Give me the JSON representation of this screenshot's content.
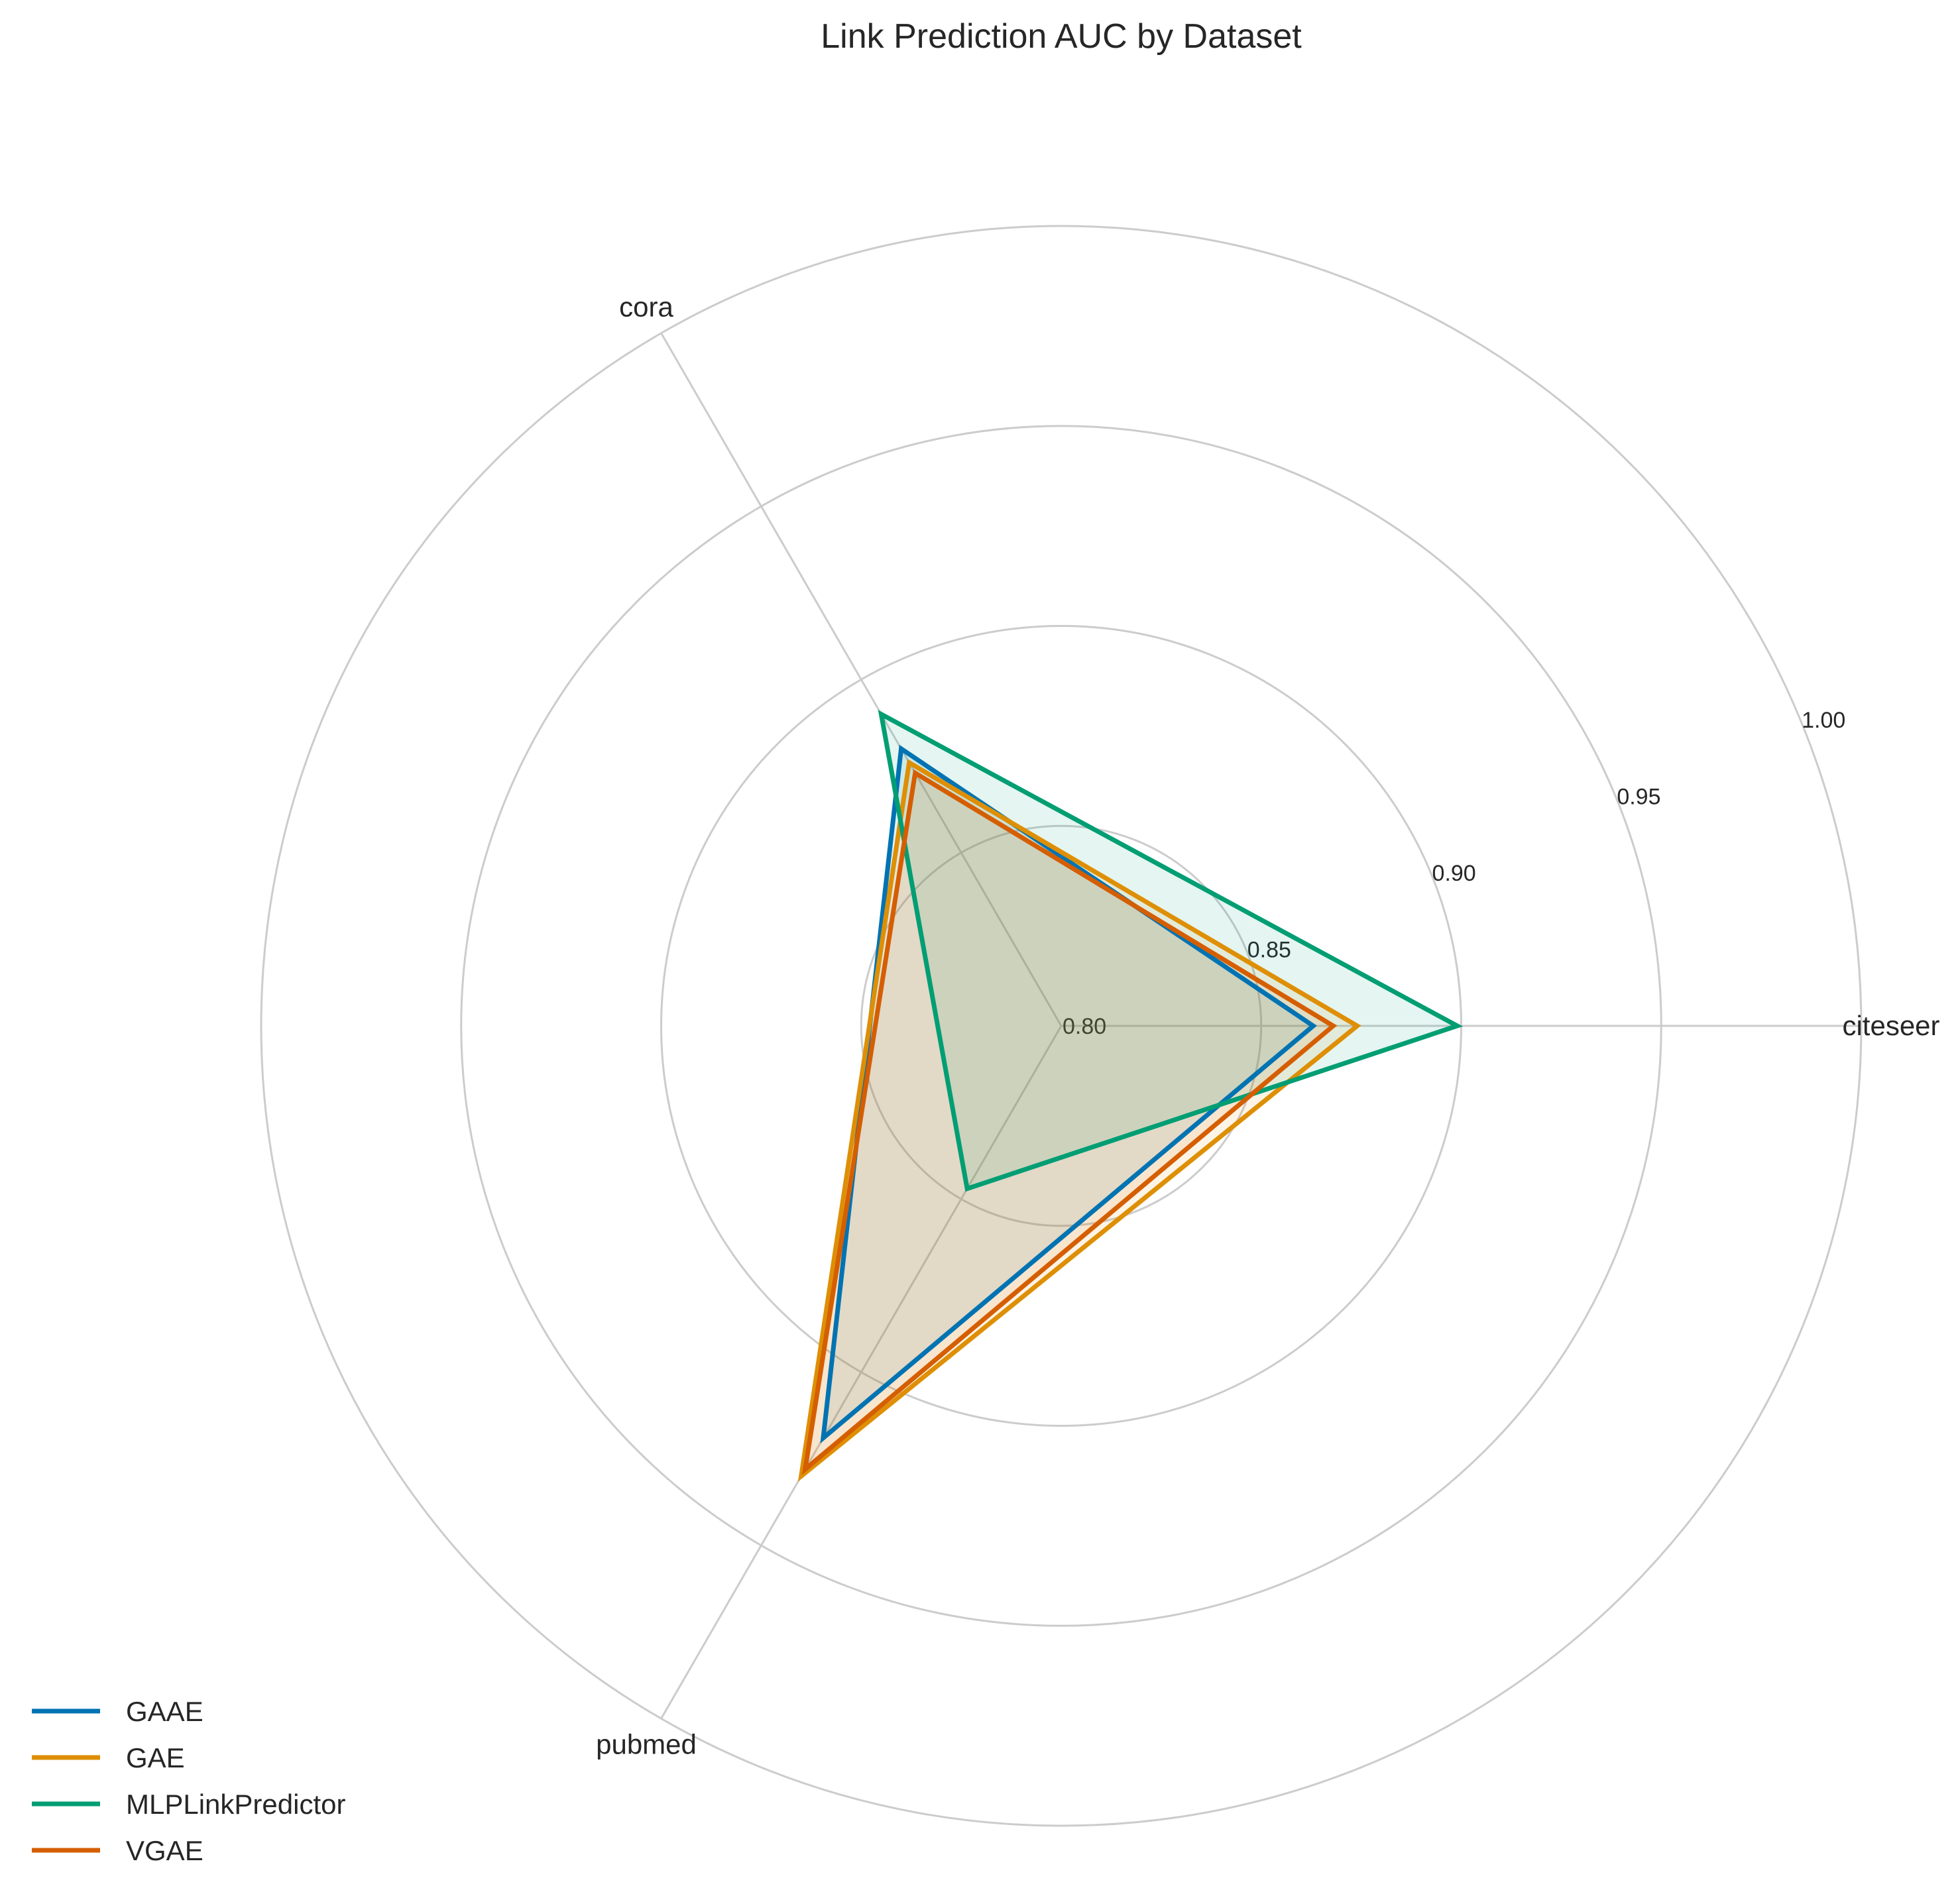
{
  "chart_data": {
    "type": "radar",
    "title": "Link Prediction AUC by Dataset",
    "categories": [
      "citeseer",
      "cora",
      "pubmed"
    ],
    "rlim": [
      0.8,
      1.0
    ],
    "rticks": [
      "0.80",
      "0.85",
      "0.90",
      "0.95",
      "1.00"
    ],
    "rtick_values": [
      0.8,
      0.85,
      0.9,
      0.95,
      1.0
    ],
    "grid": true,
    "legend_position": "lower-left",
    "series": [
      {
        "name": "GAAE",
        "color": "#0173b2",
        "values": [
          0.863,
          0.88,
          0.919
        ]
      },
      {
        "name": "GAE",
        "color": "#de8f05",
        "values": [
          0.874,
          0.876,
          0.93
        ]
      },
      {
        "name": "MLPLinkPredictor",
        "color": "#029e73",
        "values": [
          0.899,
          0.89,
          0.847
        ]
      },
      {
        "name": "VGAE",
        "color": "#d55e00",
        "values": [
          0.868,
          0.873,
          0.928
        ]
      }
    ]
  }
}
